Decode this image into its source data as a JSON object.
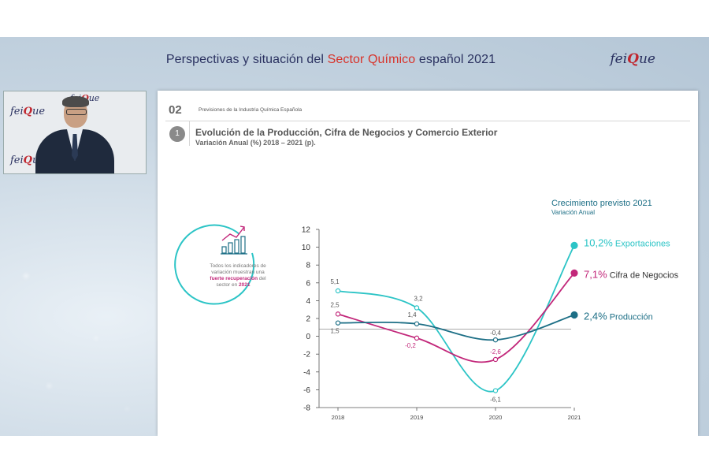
{
  "header": {
    "title_part1": "Perspectivas y situación del ",
    "title_accent": "Sector Químico",
    "title_part2": " español 2021",
    "brand_a": "fei",
    "brand_b": "Q",
    "brand_c": "ue"
  },
  "slide": {
    "section_number": "02",
    "section_label": "Previsiones de la Industria Química Española",
    "item_number": "1",
    "title": "Evolución de la Producción, Cifra de Negocios y Comercio Exterior",
    "subtitle": "Variación Anual (%) 2018 – 2021 (p).",
    "badge_text": [
      "Todos los indicadores de",
      "variación muestran una"
    ],
    "badge_bold": "fuerte recuperación",
    "badge_after_bold": " del",
    "badge_text2_pre": "sector en ",
    "badge_year": "2021",
    "growth_title": "Crecimiento previsto 2021",
    "growth_sub": "Variación Anual"
  },
  "chart_data": {
    "type": "line",
    "x": [
      "2018",
      "2019",
      "2020",
      "2021"
    ],
    "ylim": [
      -8,
      12
    ],
    "yticks": [
      "12",
      "10",
      "8",
      "6",
      "4",
      "2",
      "0",
      "-2",
      "-4",
      "-6",
      "-8"
    ],
    "grid": false,
    "series": [
      {
        "name": "Exportaciones",
        "color": "#2cc4c6",
        "values": [
          5.1,
          3.2,
          -6.1,
          10.2
        ],
        "labels": [
          "5,1",
          "3,2",
          "-6,1",
          ""
        ],
        "end_label": "10,2%"
      },
      {
        "name": "Cifra de Negocios",
        "color": "#c2277a",
        "values": [
          2.5,
          -0.2,
          -2.6,
          7.1
        ],
        "labels": [
          "2,5",
          "-0,2",
          "-2,6",
          ""
        ],
        "end_label": "7,1%"
      },
      {
        "name": "Producción",
        "color": "#1d6f86",
        "values": [
          1.5,
          1.4,
          -0.4,
          2.4
        ],
        "labels": [
          "1,5",
          "1,4",
          "-0,4",
          ""
        ],
        "end_label": "2,4%"
      }
    ]
  },
  "colors": {
    "navy": "#2a3160",
    "accent": "#d8332a",
    "teal": "#2cc4c6",
    "magenta": "#c2277a",
    "petrol": "#1d6f86"
  }
}
